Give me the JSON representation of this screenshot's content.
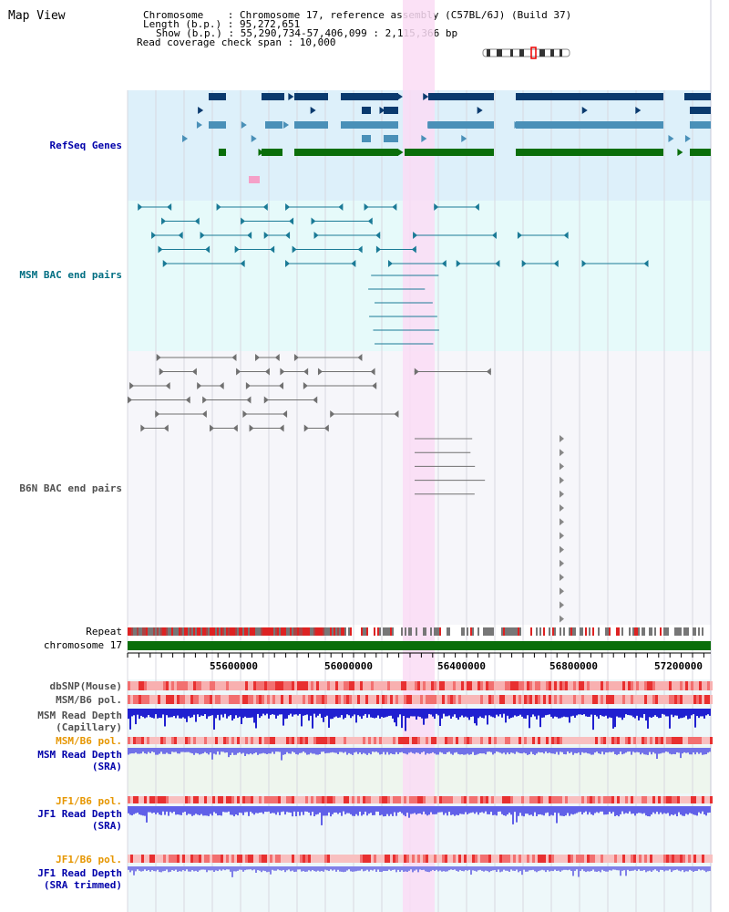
{
  "title": "Map View",
  "info": {
    "chromosome_key": "Chromosome",
    "chromosome_val": ": Chromosome 17, reference assembly (C57BL/6J) (Build 37)",
    "length_key": "Length (b.p.)",
    "length_val": ": 95,272,651",
    "show_key": "Show (b.p.)",
    "show_val": ": 55,290,734-57,406,099 : 2,115,366 bp",
    "coverage": "Read coverage check span : 10,000"
  },
  "tracks": {
    "refseq": "RefSeq Genes",
    "msm_bac": "MSM BAC end pairs",
    "b6n_bac": "B6N BAC end pairs",
    "repeat": "Repeat",
    "chromosome": "chromosome 17",
    "dbsnp": "dbSNP(Mouse)",
    "msm_b6_pol_1": "MSM/B6 pol.",
    "msm_depth_cap_1": "MSM Read Depth",
    "msm_depth_cap_2": "(Capillary)",
    "msm_b6_pol_2": "MSM/B6 pol.",
    "msm_depth_sra_1": "MSM Read Depth",
    "msm_depth_sra_2": "(SRA)",
    "jf1_b6_pol_1": "JF1/B6 pol.",
    "jf1_depth_sra_1": "JF1 Read Depth",
    "jf1_depth_sra_2": "(SRA)",
    "jf1_b6_pol_2": "JF1/B6 pol.",
    "jf1_depth_trim_1": "JF1 Read Depth",
    "jf1_depth_trim_2": "(SRA trimmed)"
  },
  "axis_ticks": [
    "55600000",
    "56000000",
    "56400000",
    "56800000",
    "57200000"
  ],
  "colors": {
    "refseq_bg": "#ddf0fa",
    "bac_msm_bg": "#e6fafa",
    "b6n_bg": "#f6f6fa",
    "highlight": "#fadcf5",
    "gene_dark": "#0a3a6e",
    "gene_mid": "#4a90b8",
    "gene_green": "#0a6e0a",
    "chromosome_bar": "#0a6e0a",
    "label_blue": "#0000aa",
    "label_teal": "#006e82",
    "label_orange": "#e69600",
    "label_gray": "#505050"
  }
}
